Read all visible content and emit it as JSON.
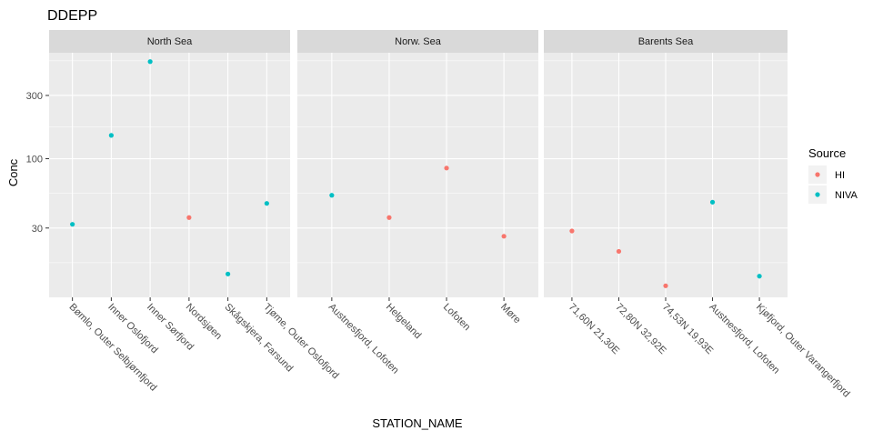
{
  "chart_data": {
    "type": "scatter",
    "title": "DDEPP",
    "xlabel": "STATION_NAME",
    "ylabel": "Conc",
    "y_scale": "log10",
    "ylim": [
      9,
      630
    ],
    "y_ticks": [
      30,
      100,
      300
    ],
    "grid": true,
    "legend": {
      "title": "Source",
      "placement": "right",
      "items": [
        {
          "label": "HI",
          "color": "#F8766D"
        },
        {
          "label": "NIVA",
          "color": "#00BFC4"
        }
      ]
    },
    "facets": [
      {
        "name": "North Sea",
        "categories": [
          "Bømlo, Outer Selbjørnfjord",
          "Inner Oslofjord",
          "Inner Sørfjord",
          "Nordsjøen",
          "Skågskjera, Farsund",
          "Tjøme, Outer Oslofjord"
        ],
        "points": [
          {
            "x": "Bømlo, Outer Selbjørnfjord",
            "y": 32,
            "source": "NIVA"
          },
          {
            "x": "Inner Oslofjord",
            "y": 150,
            "source": "NIVA"
          },
          {
            "x": "Inner Sørfjord",
            "y": 540,
            "source": "NIVA"
          },
          {
            "x": "Nordsjøen",
            "y": 36,
            "source": "HI"
          },
          {
            "x": "Skågskjera, Farsund",
            "y": 13.5,
            "source": "NIVA"
          },
          {
            "x": "Tjøme, Outer Oslofjord",
            "y": 46,
            "source": "NIVA"
          }
        ]
      },
      {
        "name": "Norw. Sea",
        "categories": [
          "Austnesfjord, Lofoten",
          "Helgeland",
          "Lofoten",
          "Møre"
        ],
        "points": [
          {
            "x": "Austnesfjord, Lofoten",
            "y": 53,
            "source": "NIVA"
          },
          {
            "x": "Helgeland",
            "y": 36,
            "source": "HI"
          },
          {
            "x": "Lofoten",
            "y": 85,
            "source": "HI"
          },
          {
            "x": "Møre",
            "y": 26,
            "source": "HI"
          }
        ]
      },
      {
        "name": "Barents Sea",
        "categories": [
          "71,60N 21,30E",
          "72,80N 32,92E",
          "74,53N 19,93E",
          "Austnesfjord, Lofoten",
          "Kjøfjord, Outer Varangerfjord"
        ],
        "points": [
          {
            "x": "71,60N 21,30E",
            "y": 28.5,
            "source": "HI"
          },
          {
            "x": "72,80N 32,92E",
            "y": 20,
            "source": "HI"
          },
          {
            "x": "74,53N 19,93E",
            "y": 11,
            "source": "HI"
          },
          {
            "x": "Austnesfjord, Lofoten",
            "y": 47,
            "source": "NIVA"
          },
          {
            "x": "Kjøfjord, Outer Varangerfjord",
            "y": 13,
            "source": "NIVA"
          }
        ]
      }
    ]
  }
}
